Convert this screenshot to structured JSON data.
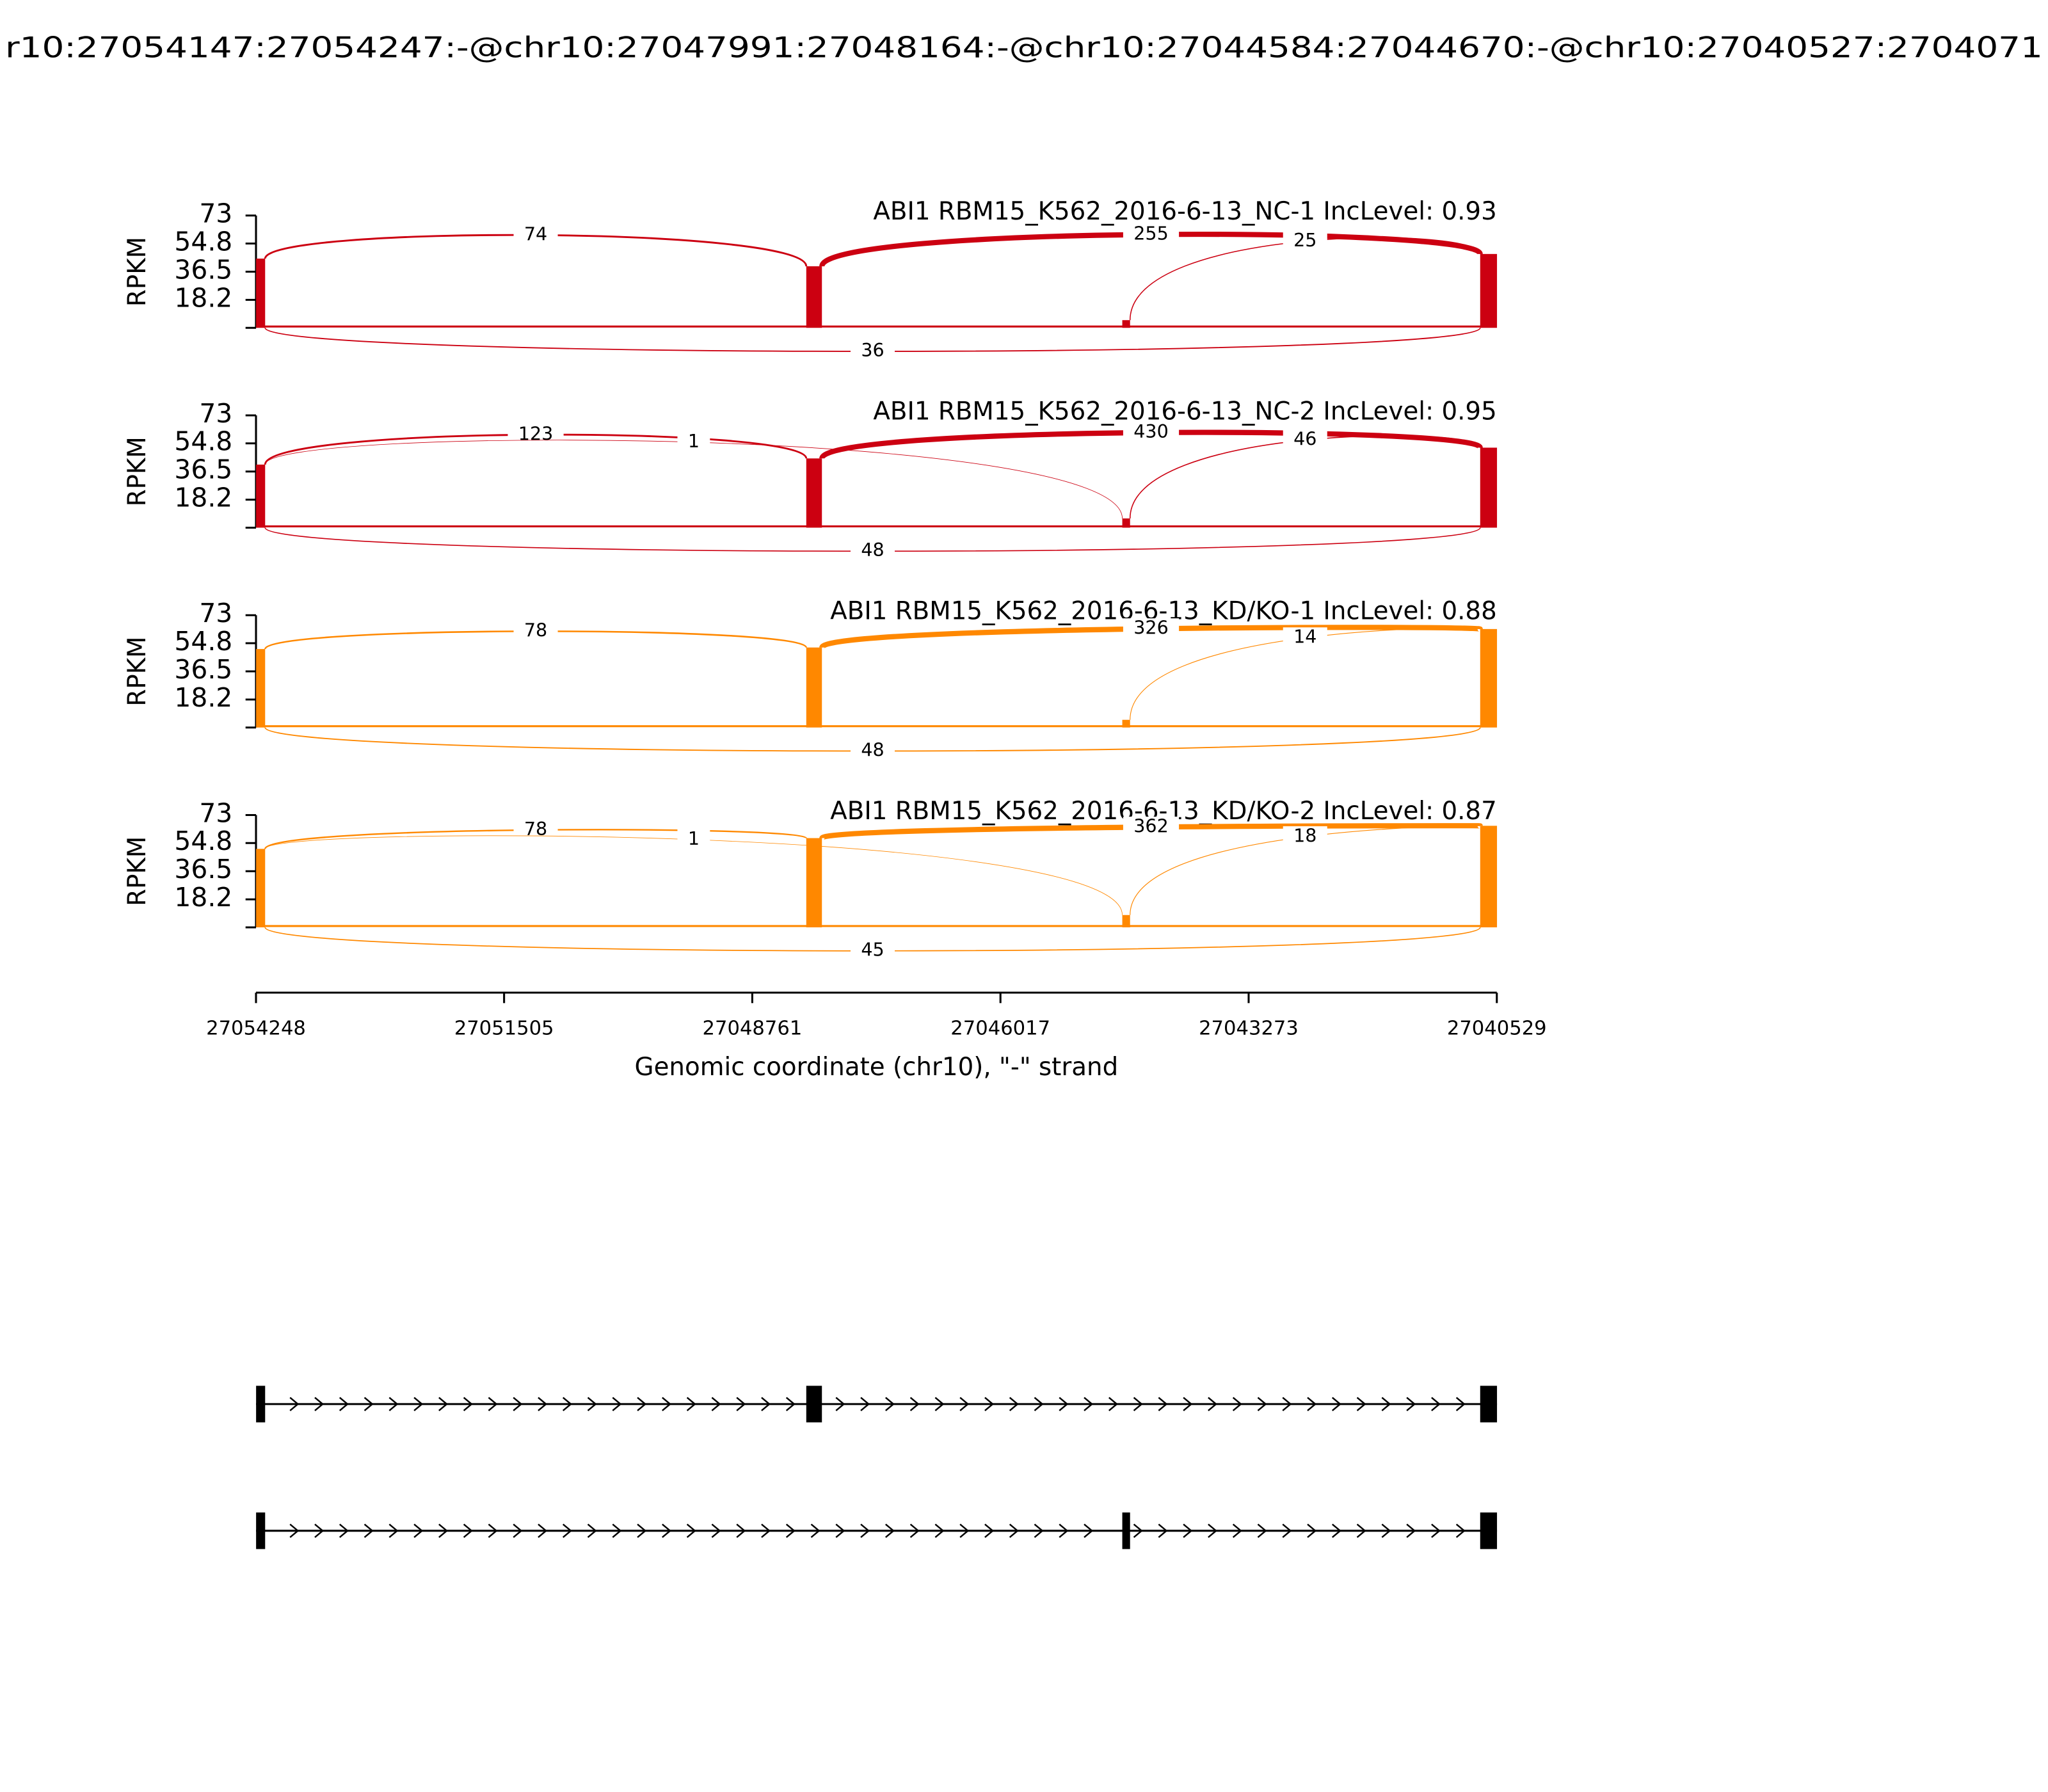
{
  "chart_data": {
    "type": "sashimi",
    "title": "r10:27054147:27054247:-@chr10:27047991:27048164:-@chr10:27044584:27044670:-@chr10:27040527:2704071",
    "xlabel": "Genomic coordinate (chr10), \"-\" strand",
    "xlim": [
      27054248,
      27040529
    ],
    "xticks": [
      27054248,
      27051505,
      27048761,
      27046017,
      27043273,
      27040529
    ],
    "panels": [
      {
        "title": "ABI1 RBM15_K562_2016-6-13_NC-1 IncLevel: 0.93",
        "color": "#cc0011",
        "ylabel": "RPKM",
        "ylim": [
          0,
          73
        ],
        "yticks": [
          18.2,
          36.5,
          54.8,
          73
        ],
        "coverage": [
          {
            "start": 27054147,
            "end": 27054247,
            "rpkm": 45
          },
          {
            "start": 27047991,
            "end": 27048164,
            "rpkm": 40
          },
          {
            "start": 27044584,
            "end": 27044670,
            "rpkm": 5
          },
          {
            "start": 27040527,
            "end": 27040713,
            "rpkm": 48
          }
        ],
        "junctions": [
          {
            "start": 27048164,
            "end": 27054147,
            "count": 74,
            "side": "above"
          },
          {
            "start": 27040713,
            "end": 27047991,
            "count": 255,
            "side": "above"
          },
          {
            "start": 27040713,
            "end": 27044584,
            "count": 25,
            "side": "above"
          },
          {
            "start": 27040713,
            "end": 27054147,
            "count": 36,
            "side": "below"
          }
        ]
      },
      {
        "title": "ABI1 RBM15_K562_2016-6-13_NC-2 IncLevel: 0.95",
        "color": "#cc0011",
        "ylabel": "RPKM",
        "ylim": [
          0,
          73
        ],
        "yticks": [
          18.2,
          36.5,
          54.8,
          73
        ],
        "coverage": [
          {
            "start": 27054147,
            "end": 27054247,
            "rpkm": 41
          },
          {
            "start": 27047991,
            "end": 27048164,
            "rpkm": 45
          },
          {
            "start": 27044584,
            "end": 27044670,
            "rpkm": 6
          },
          {
            "start": 27040527,
            "end": 27040713,
            "rpkm": 52
          }
        ],
        "junctions": [
          {
            "start": 27048164,
            "end": 27054147,
            "count": 123,
            "side": "above"
          },
          {
            "start": 27044670,
            "end": 27054147,
            "count": 1,
            "side": "above"
          },
          {
            "start": 27040713,
            "end": 27047991,
            "count": 430,
            "side": "above"
          },
          {
            "start": 27040713,
            "end": 27044584,
            "count": 46,
            "side": "above"
          },
          {
            "start": 27040713,
            "end": 27054147,
            "count": 48,
            "side": "below"
          }
        ]
      },
      {
        "title": "ABI1 RBM15_K562_2016-6-13_KD/KO-1 IncLevel: 0.88",
        "color": "#ff8800",
        "ylabel": "RPKM",
        "ylim": [
          0,
          73
        ],
        "yticks": [
          18.2,
          36.5,
          54.8,
          73
        ],
        "coverage": [
          {
            "start": 27054147,
            "end": 27054247,
            "rpkm": 51
          },
          {
            "start": 27047991,
            "end": 27048164,
            "rpkm": 52
          },
          {
            "start": 27044584,
            "end": 27044670,
            "rpkm": 5
          },
          {
            "start": 27040527,
            "end": 27040713,
            "rpkm": 64
          }
        ],
        "junctions": [
          {
            "start": 27048164,
            "end": 27054147,
            "count": 78,
            "side": "above"
          },
          {
            "start": 27040713,
            "end": 27047991,
            "count": 326,
            "side": "above"
          },
          {
            "start": 27040713,
            "end": 27044584,
            "count": 14,
            "side": "above"
          },
          {
            "start": 27040713,
            "end": 27054147,
            "count": 48,
            "side": "below"
          }
        ]
      },
      {
        "title": "ABI1 RBM15_K562_2016-6-13_KD/KO-2 IncLevel: 0.87",
        "color": "#ff8800",
        "ylabel": "RPKM",
        "ylim": [
          0,
          73
        ],
        "yticks": [
          18.2,
          36.5,
          54.8,
          73
        ],
        "coverage": [
          {
            "start": 27054147,
            "end": 27054247,
            "rpkm": 51
          },
          {
            "start": 27047991,
            "end": 27048164,
            "rpkm": 58
          },
          {
            "start": 27044584,
            "end": 27044670,
            "rpkm": 8
          },
          {
            "start": 27040527,
            "end": 27040713,
            "rpkm": 66
          }
        ],
        "junctions": [
          {
            "start": 27048164,
            "end": 27054147,
            "count": 78,
            "side": "above"
          },
          {
            "start": 27044670,
            "end": 27054147,
            "count": 1,
            "side": "above"
          },
          {
            "start": 27040713,
            "end": 27047991,
            "count": 362,
            "side": "above"
          },
          {
            "start": 27040713,
            "end": 27044584,
            "count": 18,
            "side": "above"
          },
          {
            "start": 27040713,
            "end": 27054147,
            "count": 45,
            "side": "below"
          }
        ]
      }
    ],
    "transcripts": [
      {
        "exons": [
          [
            27054147,
            27054247
          ],
          [
            27047991,
            27048164
          ],
          [
            27040527,
            27040713
          ]
        ]
      },
      {
        "exons": [
          [
            27054147,
            27054247
          ],
          [
            27044584,
            27044670
          ],
          [
            27040527,
            27040713
          ]
        ]
      }
    ]
  }
}
